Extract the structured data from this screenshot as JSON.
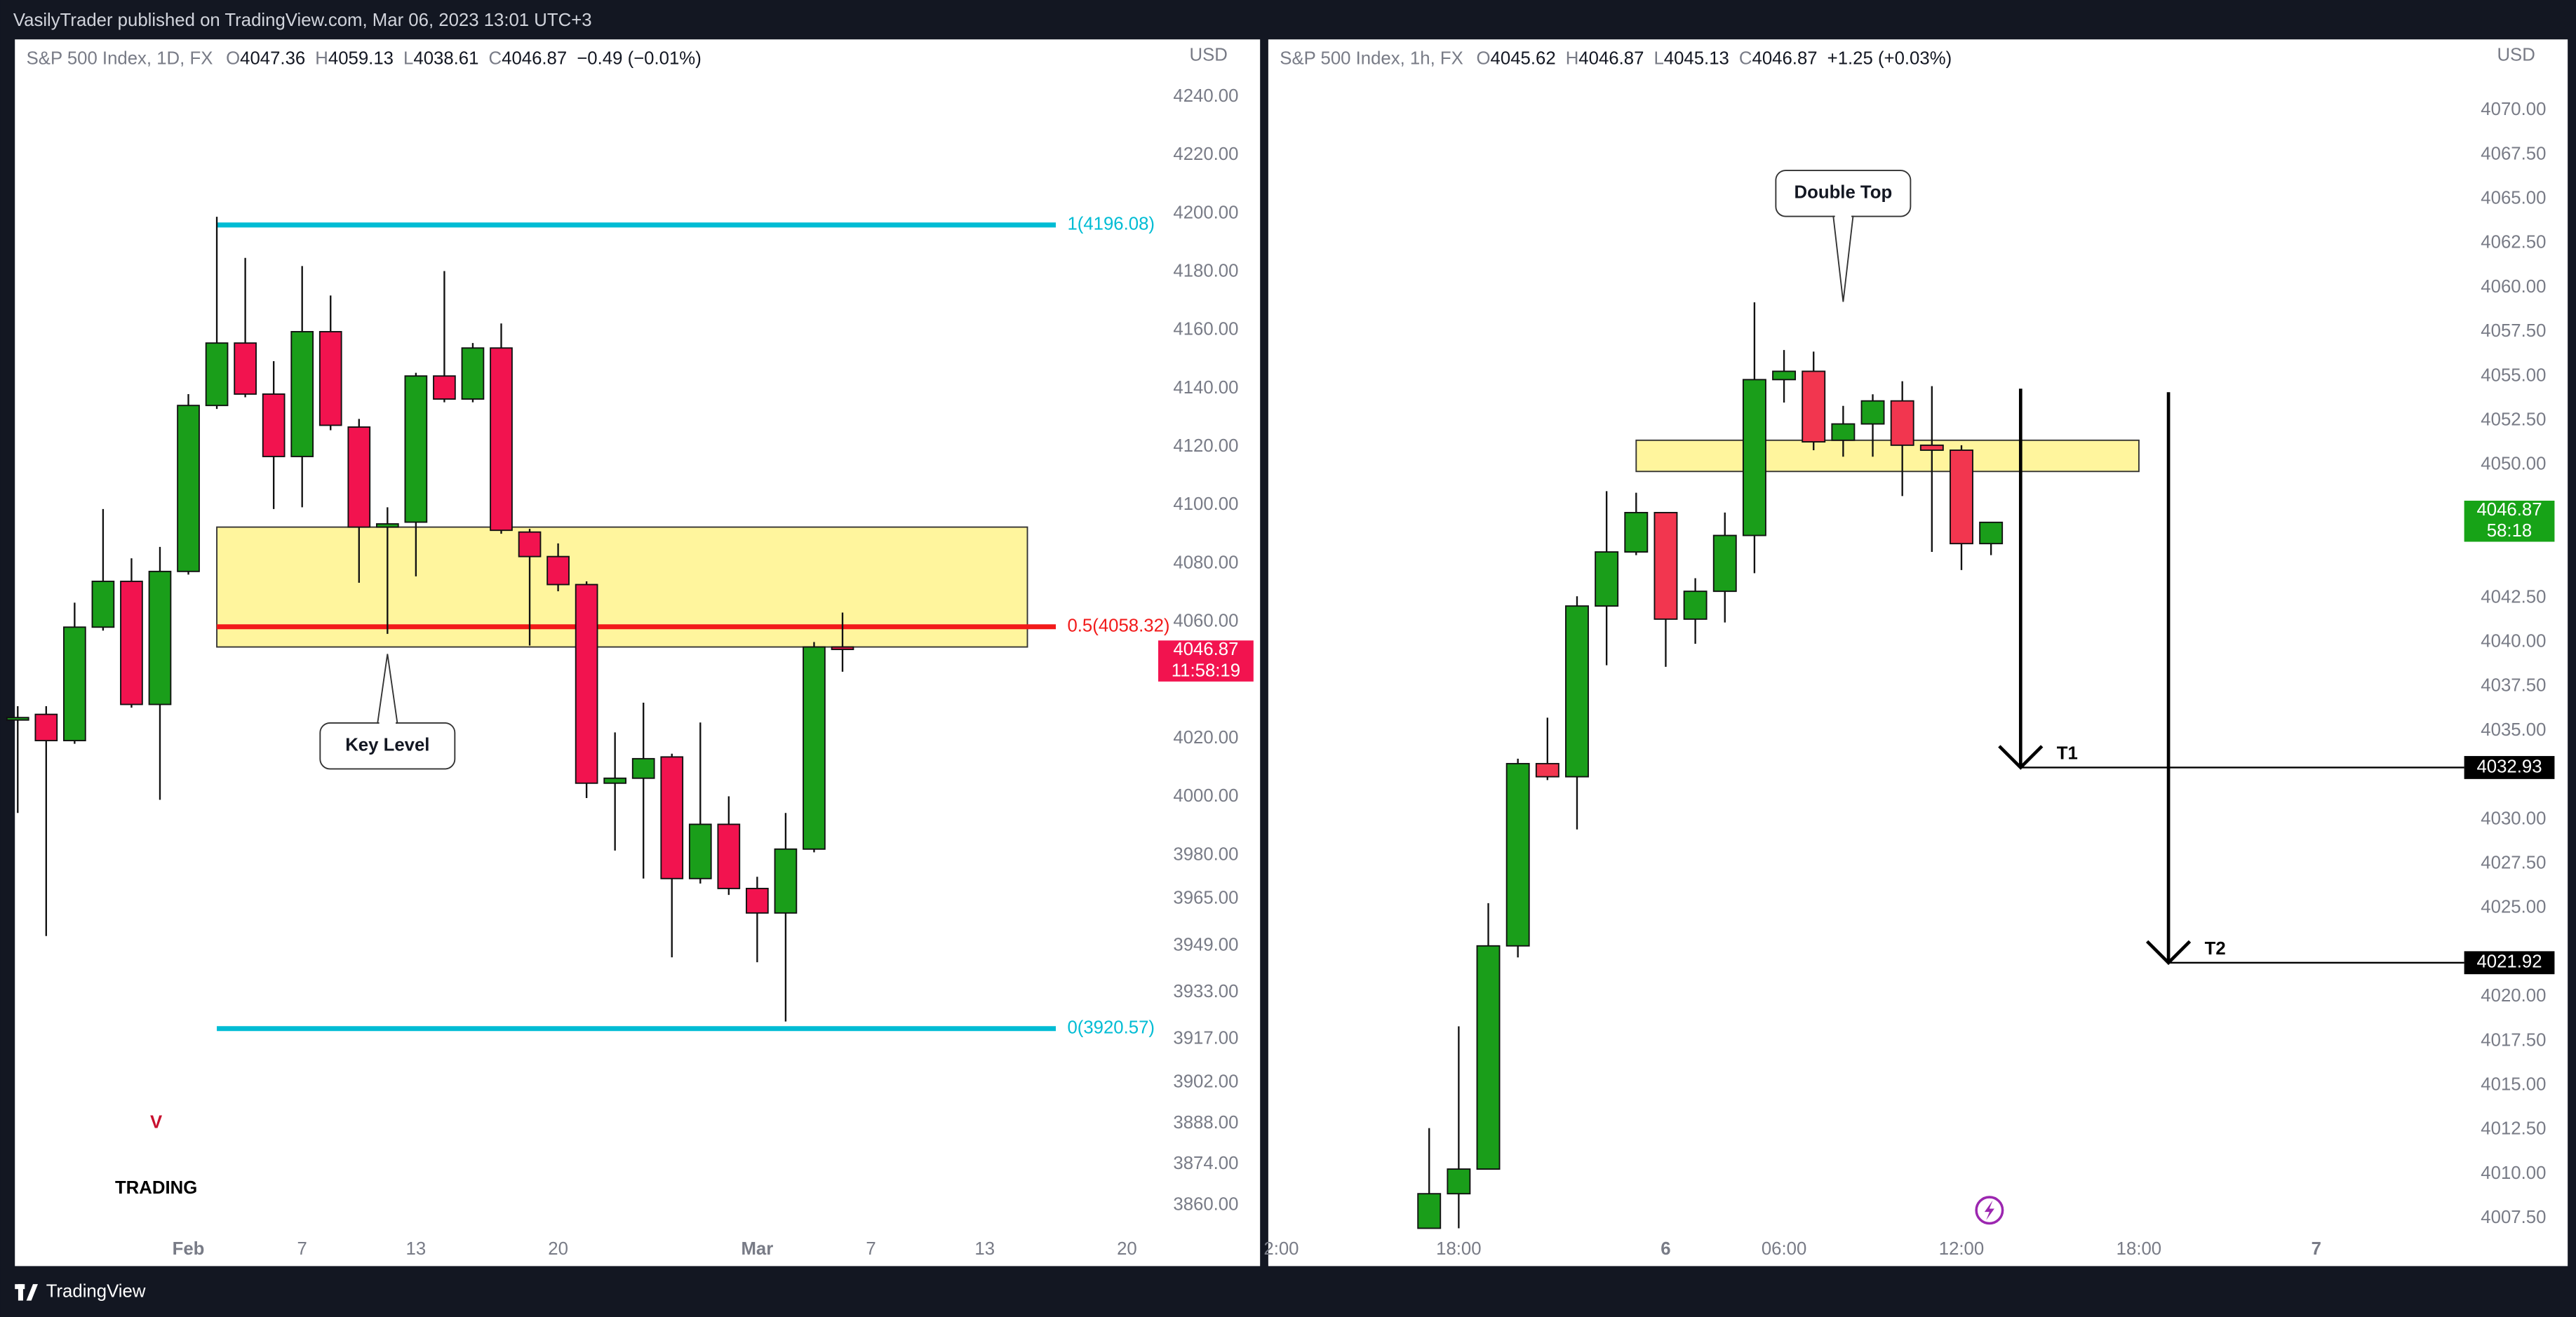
{
  "header": {
    "publisher": "VasilyTrader published on TradingView.com, Mar 06, 2023 13:01 UTC+3"
  },
  "footer": {
    "brand": "TradingView"
  },
  "chart_data": [
    {
      "type": "candlestick",
      "symbol": "S&P 500 Index, 1D, FX",
      "ohlc": [
        {
          "label": "O",
          "value": 4047.36
        },
        {
          "label": "H",
          "value": 4059.13
        },
        {
          "label": "L",
          "value": 4038.61
        },
        {
          "label": "C",
          "value": 4046.87
        }
      ],
      "change": "−0.49 (−0.01%)",
      "currency": "USD",
      "up_color": "#1a9e1a",
      "down_color": "#f2134f",
      "grid": false,
      "ylim": [
        3839.7,
        4259.7
      ],
      "yticks": [
        {
          "value": 4240,
          "label": "4240.00"
        },
        {
          "value": 4220,
          "label": "4220.00"
        },
        {
          "value": 4200,
          "label": "4200.00"
        },
        {
          "value": 4180,
          "label": "4180.00"
        },
        {
          "value": 4160,
          "label": "4160.00"
        },
        {
          "value": 4140,
          "label": "4140.00"
        },
        {
          "value": 4120,
          "label": "4120.00"
        },
        {
          "value": 4100,
          "label": "4100.00"
        },
        {
          "value": 4080,
          "label": "4080.00"
        },
        {
          "value": 4060,
          "label": "4060.00"
        },
        {
          "value": 4020,
          "label": "4020.00"
        },
        {
          "value": 4000,
          "label": "4000.00"
        },
        {
          "value": 3980,
          "label": "3980.00"
        },
        {
          "value": 3965,
          "label": "3965.00"
        },
        {
          "value": 3949,
          "label": "3949.00"
        },
        {
          "value": 3933,
          "label": "3933.00"
        },
        {
          "value": 3917,
          "label": "3917.00"
        },
        {
          "value": 3902,
          "label": "3902.00"
        },
        {
          "value": 3888,
          "label": "3888.00"
        },
        {
          "value": 3874,
          "label": "3874.00"
        },
        {
          "value": 3860,
          "label": "3860.00"
        }
      ],
      "xlim": [
        -0.1,
        40.1
      ],
      "xticks": [
        {
          "value": 6,
          "label": "Feb"
        },
        {
          "value": 10,
          "label": "7"
        },
        {
          "value": 14,
          "label": "13"
        },
        {
          "value": 19,
          "label": "20"
        },
        {
          "value": 26,
          "label": "Mar"
        },
        {
          "value": 30,
          "label": "7"
        },
        {
          "value": 34,
          "label": "13"
        },
        {
          "value": 39,
          "label": "20"
        }
      ],
      "candles": [
        {
          "open": 4026.6,
          "high": 4031.1,
          "low": 3994.5,
          "close": 4027.2
        },
        {
          "open": 4028.3,
          "high": 4031.1,
          "low": 3952.3,
          "close": 4019.3
        },
        {
          "open": 4019.3,
          "high": 4066.6,
          "low": 4018.2,
          "close": 4058.2
        },
        {
          "open": 4058.2,
          "high": 4098.7,
          "low": 4057.0,
          "close": 4073.9
        },
        {
          "open": 4073.9,
          "high": 4081.8,
          "low": 4030.6,
          "close": 4031.7
        },
        {
          "open": 4031.7,
          "high": 4085.7,
          "low": 3999.0,
          "close": 4077.3
        },
        {
          "open": 4077.3,
          "high": 4138.1,
          "low": 4076.2,
          "close": 4134.2
        },
        {
          "open": 4134.2,
          "high": 4198.9,
          "low": 4133.0,
          "close": 4155.6
        },
        {
          "open": 4155.6,
          "high": 4184.8,
          "low": 4137.0,
          "close": 4138.1
        },
        {
          "open": 4138.1,
          "high": 4149.4,
          "low": 4098.7,
          "close": 4116.7
        },
        {
          "open": 4116.7,
          "high": 4182.0,
          "low": 4099.3,
          "close": 4159.5
        },
        {
          "open": 4159.5,
          "high": 4171.9,
          "low": 4125.7,
          "close": 4127.4
        },
        {
          "open": 4126.8,
          "high": 4129.6,
          "low": 4073.4,
          "close": 4092.5
        },
        {
          "open": 4092.5,
          "high": 4099.3,
          "low": 4055.9,
          "close": 4093.6
        },
        {
          "open": 4094.2,
          "high": 4145.4,
          "low": 4075.6,
          "close": 4144.3
        },
        {
          "open": 4144.3,
          "high": 4180.3,
          "low": 4135.3,
          "close": 4136.4
        },
        {
          "open": 4136.4,
          "high": 4155.6,
          "low": 4135.3,
          "close": 4153.9
        },
        {
          "open": 4153.9,
          "high": 4162.3,
          "low": 4090.2,
          "close": 4091.4
        },
        {
          "open": 4090.8,
          "high": 4091.9,
          "low": 4051.9,
          "close": 4082.4
        },
        {
          "open": 4082.4,
          "high": 4086.9,
          "low": 4070.5,
          "close": 4072.8
        },
        {
          "open": 4072.8,
          "high": 4073.9,
          "low": 3999.6,
          "close": 4004.7
        },
        {
          "open": 4004.7,
          "high": 4022.1,
          "low": 3981.6,
          "close": 4006.4
        },
        {
          "open": 4006.4,
          "high": 4032.3,
          "low": 3972.0,
          "close": 4013.1
        },
        {
          "open": 4013.7,
          "high": 4014.8,
          "low": 3945.0,
          "close": 3972.0
        },
        {
          "open": 3972.0,
          "high": 4025.5,
          "low": 3970.3,
          "close": 3990.6
        },
        {
          "open": 3990.6,
          "high": 4000.2,
          "low": 3966.4,
          "close": 3968.6
        },
        {
          "open": 3968.6,
          "high": 3972.6,
          "low": 3943.3,
          "close": 3960.2
        },
        {
          "open": 3960.2,
          "high": 3994.5,
          "low": 3923.0,
          "close": 3982.1
        },
        {
          "open": 3982.1,
          "high": 4053.1,
          "low": 3981.0,
          "close": 4051.4
        },
        {
          "open": 4051.4,
          "high": 4063.2,
          "low": 4042.9,
          "close": 4050.8
        }
      ],
      "zone": {
        "low": 4051.4,
        "high": 4092.5,
        "start": 7,
        "end": 35.5,
        "color": "#fff59d"
      },
      "levels": [
        {
          "value": 4196.08,
          "label": "1(4196.08)",
          "color": "#00bcd4",
          "start": 7,
          "end": 36.5
        },
        {
          "value": 4058.32,
          "label": "0.5(4058.32)",
          "color": "#f21a1a",
          "start": 7,
          "end": 36.5
        },
        {
          "value": 3920.57,
          "label": "0(3920.57)",
          "color": "#00bcd4",
          "start": 7,
          "end": 36.5
        }
      ],
      "price_label": {
        "value": 4046.87,
        "countdown": "11:58:19",
        "color": "#f2134f"
      },
      "callout": {
        "text": "Key Level",
        "x": 13,
        "value": 4049
      },
      "logo": {
        "letter": "V",
        "text": "TRADING",
        "color": "#c8102e"
      }
    },
    {
      "type": "candlestick",
      "symbol": "S&P 500 Index, 1h, FX",
      "ohlc": [
        {
          "label": "O",
          "value": 4045.62
        },
        {
          "label": "H",
          "value": 4046.87
        },
        {
          "label": "L",
          "value": 4045.13
        },
        {
          "label": "C",
          "value": 4046.87
        }
      ],
      "change": "+1.25 (+0.03%)",
      "currency": "USD",
      "up_color": "#1a9e1a",
      "down_color": "#f2364f",
      "grid": false,
      "ylim": [
        4004.9,
        4074
      ],
      "yticks": [
        {
          "value": 4070,
          "label": "4070.00"
        },
        {
          "value": 4067.5,
          "label": "4067.50"
        },
        {
          "value": 4065,
          "label": "4065.00"
        },
        {
          "value": 4062.5,
          "label": "4062.50"
        },
        {
          "value": 4060,
          "label": "4060.00"
        },
        {
          "value": 4057.5,
          "label": "4057.50"
        },
        {
          "value": 4055,
          "label": "4055.00"
        },
        {
          "value": 4052.5,
          "label": "4052.50"
        },
        {
          "value": 4050,
          "label": "4050.00"
        },
        {
          "value": 4042.5,
          "label": "4042.50"
        },
        {
          "value": 4040,
          "label": "4040.00"
        },
        {
          "value": 4037.5,
          "label": "4037.50"
        },
        {
          "value": 4035,
          "label": "4035.00"
        },
        {
          "value": 4030,
          "label": "4030.00"
        },
        {
          "value": 4027.5,
          "label": "4027.50"
        },
        {
          "value": 4025,
          "label": "4025.00"
        },
        {
          "value": 4020,
          "label": "4020.00"
        },
        {
          "value": 4017.5,
          "label": "4017.50"
        },
        {
          "value": 4015,
          "label": "4015.00"
        },
        {
          "value": 4012.5,
          "label": "4012.50"
        },
        {
          "value": 4010,
          "label": "4010.00"
        },
        {
          "value": 4007.5,
          "label": "4007.50"
        }
      ],
      "xlim": [
        -5.44,
        35
      ],
      "xticks": [
        {
          "value": -5,
          "label": "2:00"
        },
        {
          "value": 1,
          "label": "18:00"
        },
        {
          "value": 8,
          "label": "6"
        },
        {
          "value": 12,
          "label": "06:00"
        },
        {
          "value": 18,
          "label": "12:00"
        },
        {
          "value": 24,
          "label": "18:00"
        },
        {
          "value": 30,
          "label": "7"
        }
      ],
      "candles": [
        {
          "open": 4006.94,
          "high": 4012.59,
          "low": 4006.94,
          "close": 4008.89
        },
        {
          "open": 4008.89,
          "high": 4018.33,
          "low": 4006.94,
          "close": 4010.28
        },
        {
          "open": 4010.28,
          "high": 4025.28,
          "low": 4010.28,
          "close": 4022.87
        },
        {
          "open": 4022.87,
          "high": 4033.43,
          "low": 4022.22,
          "close": 4033.15
        },
        {
          "open": 4033.15,
          "high": 4035.74,
          "low": 4032.22,
          "close": 4032.41
        },
        {
          "open": 4032.41,
          "high": 4042.59,
          "low": 4029.44,
          "close": 4042.04
        },
        {
          "open": 4042.04,
          "high": 4048.52,
          "low": 4038.7,
          "close": 4045.09
        },
        {
          "open": 4045.09,
          "high": 4048.43,
          "low": 4044.91,
          "close": 4047.31
        },
        {
          "open": 4047.31,
          "high": 4047.31,
          "low": 4038.61,
          "close": 4041.3
        },
        {
          "open": 4041.3,
          "high": 4043.61,
          "low": 4039.91,
          "close": 4042.87
        },
        {
          "open": 4042.87,
          "high": 4047.31,
          "low": 4041.11,
          "close": 4046.02
        },
        {
          "open": 4046.02,
          "high": 4059.17,
          "low": 4043.89,
          "close": 4054.81
        },
        {
          "open": 4054.81,
          "high": 4056.48,
          "low": 4053.52,
          "close": 4055.28
        },
        {
          "open": 4055.28,
          "high": 4056.39,
          "low": 4050.83,
          "close": 4051.3
        },
        {
          "open": 4051.39,
          "high": 4053.33,
          "low": 4050.46,
          "close": 4052.31
        },
        {
          "open": 4052.31,
          "high": 4053.98,
          "low": 4050.46,
          "close": 4053.61
        },
        {
          "open": 4053.61,
          "high": 4054.72,
          "low": 4048.24,
          "close": 4051.11
        },
        {
          "open": 4051.11,
          "high": 4054.44,
          "low": 4045.09,
          "close": 4050.83
        },
        {
          "open": 4050.83,
          "high": 4051.11,
          "low": 4044.07,
          "close": 4045.56
        },
        {
          "open": 4045.56,
          "high": 4046.76,
          "low": 4044.91,
          "close": 4046.76
        }
      ],
      "zone": {
        "low": 4049.63,
        "high": 4051.39,
        "start": 7,
        "end": 24,
        "color": "#fff59d"
      },
      "price_label": {
        "value": 4046.87,
        "countdown": "58:18",
        "color": "#17a317"
      },
      "callout": {
        "text": "Double Top",
        "x": 14,
        "value": 4059.2
      },
      "targets": [
        {
          "label": "T1",
          "value": 4032.93,
          "x": 20,
          "from": 4054.3
        },
        {
          "label": "T2",
          "value": 4021.92,
          "x": 25,
          "from": 4054.1
        }
      ]
    }
  ]
}
